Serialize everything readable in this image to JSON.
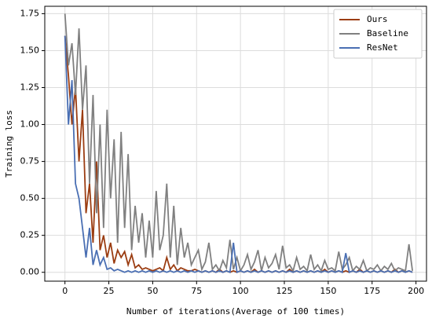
{
  "chart_data": {
    "type": "line",
    "xlabel": "Number of iterations(Average of 100 times)",
    "ylabel": "Training loss",
    "x": [
      0,
      2,
      4,
      6,
      8,
      10,
      12,
      14,
      16,
      18,
      20,
      22,
      24,
      26,
      28,
      30,
      32,
      34,
      36,
      38,
      40,
      42,
      44,
      46,
      48,
      50,
      52,
      54,
      56,
      58,
      60,
      62,
      64,
      66,
      68,
      70,
      72,
      74,
      76,
      78,
      80,
      82,
      84,
      86,
      88,
      90,
      92,
      94,
      96,
      98,
      100,
      102,
      104,
      106,
      108,
      110,
      112,
      114,
      116,
      118,
      120,
      122,
      124,
      126,
      128,
      130,
      132,
      134,
      136,
      138,
      140,
      142,
      144,
      146,
      148,
      150,
      152,
      154,
      156,
      158,
      160,
      162,
      164,
      166,
      168,
      170,
      172,
      174,
      176,
      178,
      180,
      182,
      184,
      186,
      188,
      190,
      192,
      194,
      196,
      198
    ],
    "series": [
      {
        "name": "Ours",
        "color": "#9b3d12",
        "values": [
          1.6,
          1.33,
          1.0,
          1.25,
          0.75,
          1.1,
          0.4,
          0.6,
          0.2,
          0.75,
          0.15,
          0.25,
          0.1,
          0.2,
          0.06,
          0.15,
          0.1,
          0.14,
          0.05,
          0.12,
          0.03,
          0.05,
          0.02,
          0.03,
          0.02,
          0.01,
          0.02,
          0.03,
          0.01,
          0.1,
          0.02,
          0.05,
          0.01,
          0.03,
          0.02,
          0.01,
          0.01,
          0.02,
          0.01,
          0,
          0.01,
          0,
          0.01,
          0,
          0.02,
          0,
          0.01,
          0,
          0.01,
          0,
          0.01,
          0,
          0.01,
          0,
          0.02,
          0,
          0.01,
          0,
          0.01,
          0,
          0.01,
          0,
          0.01,
          0,
          0.02,
          0,
          0.01,
          0,
          0.01,
          0,
          0.01,
          0,
          0.01,
          0,
          0.02,
          0,
          0.01,
          0,
          0.01,
          0,
          0.01,
          0,
          0.01,
          0,
          0.02,
          0,
          0.01,
          0,
          0.01,
          0,
          0.01,
          0,
          0.01,
          0,
          0.02,
          0,
          0.01,
          0,
          0.01,
          0
        ]
      },
      {
        "name": "Baseline",
        "color": "#808080",
        "values": [
          1.75,
          1.4,
          1.55,
          1.2,
          1.65,
          1.1,
          1.4,
          0.6,
          1.2,
          0.4,
          1.0,
          0.3,
          1.1,
          0.5,
          0.9,
          0.2,
          0.95,
          0.3,
          0.8,
          0.15,
          0.45,
          0.2,
          0.4,
          0.1,
          0.35,
          0.1,
          0.55,
          0.15,
          0.25,
          0.6,
          0.1,
          0.45,
          0.05,
          0.3,
          0.1,
          0.2,
          0.05,
          0.1,
          0.15,
          0.02,
          0.07,
          0.2,
          0.02,
          0.05,
          0.01,
          0.08,
          0.03,
          0.22,
          0.02,
          0.1,
          0.01,
          0.05,
          0.12,
          0.02,
          0.07,
          0.15,
          0.01,
          0.1,
          0.03,
          0.06,
          0.12,
          0.02,
          0.18,
          0.03,
          0.05,
          0.01,
          0.1,
          0.02,
          0.04,
          0.01,
          0.12,
          0.02,
          0.05,
          0.01,
          0.08,
          0.02,
          0.03,
          0.01,
          0.14,
          0.02,
          0.05,
          0.1,
          0.01,
          0.04,
          0.02,
          0.08,
          0.01,
          0.03,
          0.02,
          0.05,
          0.01,
          0.04,
          0.02,
          0.06,
          0.01,
          0.03,
          0.02,
          0.01,
          0.19,
          0.01
        ]
      },
      {
        "name": "ResNet",
        "color": "#4a6fb3",
        "values": [
          1.6,
          1.0,
          1.3,
          0.6,
          0.5,
          0.3,
          0.1,
          0.3,
          0.05,
          0.15,
          0.05,
          0.1,
          0.02,
          0.03,
          0.01,
          0.02,
          0.01,
          0,
          0.01,
          0,
          0.01,
          0,
          0.01,
          0,
          0.01,
          0,
          0.01,
          0,
          0.01,
          0,
          0.01,
          0,
          0.01,
          0,
          0.01,
          0,
          0.01,
          0,
          0.01,
          0,
          0.01,
          0,
          0.01,
          0,
          0.01,
          0,
          0.01,
          0,
          0.2,
          0,
          0.01,
          0,
          0.01,
          0,
          0.01,
          0,
          0.01,
          0,
          0.01,
          0,
          0.01,
          0,
          0.01,
          0,
          0.01,
          0,
          0.01,
          0,
          0.01,
          0,
          0.01,
          0,
          0.01,
          0,
          0.01,
          0,
          0.01,
          0,
          0.01,
          0,
          0.13,
          0,
          0.01,
          0,
          0.01,
          0,
          0.01,
          0,
          0.01,
          0,
          0.01,
          0,
          0.01,
          0,
          0.01,
          0,
          0.01,
          0,
          0.01,
          0
        ]
      }
    ],
    "xlim": [
      -11.5,
      206
    ],
    "ylim": [
      -0.06,
      1.8
    ],
    "xticks": [
      0,
      25,
      50,
      75,
      100,
      125,
      150,
      175,
      200
    ],
    "yticks": [
      {
        "value": 0,
        "label": "0.00"
      },
      0.25,
      {
        "value": 0.5,
        "label": "0.50"
      },
      0.75,
      {
        "value": 1,
        "label": "1.00"
      },
      1.25,
      {
        "value": 1.5,
        "label": "1.50"
      },
      1.75
    ],
    "grid": true,
    "legend": "upper right"
  }
}
